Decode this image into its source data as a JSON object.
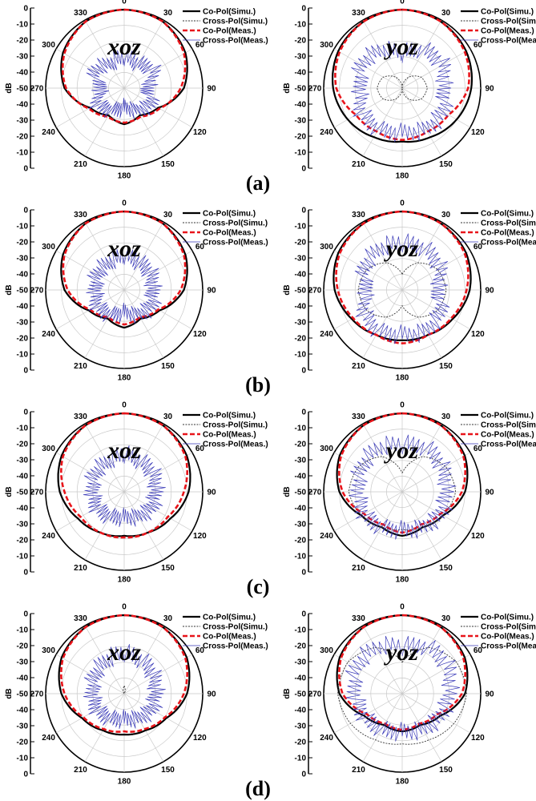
{
  "figure": {
    "panel_labels": [
      "(a)",
      "(b)",
      "(c)",
      "(d)"
    ],
    "legend": [
      "Co-Pol(Simu.)",
      "Cross-Pol(Simu.)",
      "Co-Pol(Meas.)",
      "Cross-Pol(Meas.)"
    ],
    "series_colors": {
      "co_simu": "#000000",
      "cross_simu": "#333333",
      "co_meas": "#e8141a",
      "cross_meas": "#3a3ab8"
    },
    "radial_label": "dB",
    "radial_ticks": [
      "0",
      "-10",
      "-20",
      "-30",
      "-40",
      "-50",
      "-40",
      "-30",
      "-20",
      "-10",
      "0"
    ],
    "angle_labels": [
      "0",
      "30",
      "60",
      "90",
      "120",
      "150",
      "180",
      "210",
      "240",
      "270",
      "300",
      "330"
    ]
  },
  "chart_data": [
    {
      "type": "polar",
      "panel": "(a)",
      "plane": "xoz",
      "r_range": [
        -50,
        0
      ],
      "angle_step": 30,
      "grid": true,
      "legend_position": "top-right",
      "theta_deg": [
        0,
        30,
        60,
        90,
        120,
        150,
        180,
        210,
        240,
        270,
        300,
        330
      ],
      "series": [
        {
          "name": "Co-Pol(Simu.)",
          "r_db": [
            0,
            -1,
            -5,
            -12,
            -25,
            -30,
            -27,
            -30,
            -25,
            -12,
            -5,
            -1
          ]
        },
        {
          "name": "Cross-Pol(Simu.)",
          "r_db": [
            -50,
            -50,
            -50,
            -50,
            -50,
            -50,
            -50,
            -50,
            -50,
            -50,
            -50,
            -50
          ]
        },
        {
          "name": "Co-Pol(Meas.)",
          "r_db": [
            0,
            -1,
            -6,
            -14,
            -24,
            -29,
            -28,
            -29,
            -24,
            -13,
            -6,
            -1
          ]
        },
        {
          "name": "Cross-Pol(Meas.)",
          "r_db": [
            -30,
            -32,
            -28,
            -36,
            -30,
            -34,
            -38,
            -34,
            -30,
            -36,
            -28,
            -32
          ]
        }
      ]
    },
    {
      "type": "polar",
      "panel": "(a)",
      "plane": "yoz",
      "r_range": [
        -50,
        0
      ],
      "angle_step": 30,
      "grid": true,
      "legend_position": "top-right",
      "theta_deg": [
        0,
        30,
        60,
        90,
        120,
        150,
        180,
        210,
        240,
        270,
        300,
        330
      ],
      "series": [
        {
          "name": "Co-Pol(Simu.)",
          "r_db": [
            0,
            -1,
            -3,
            -6,
            -10,
            -14,
            -16,
            -14,
            -10,
            -6,
            -3,
            -1
          ]
        },
        {
          "name": "Cross-Pol(Simu.)",
          "r_db": [
            -50,
            -42,
            -36,
            -34,
            -36,
            -42,
            -50,
            -42,
            -36,
            -34,
            -36,
            -42
          ]
        },
        {
          "name": "Co-Pol(Meas.)",
          "r_db": [
            0,
            -1,
            -4,
            -8,
            -16,
            -18,
            -17,
            -18,
            -16,
            -8,
            -4,
            -1
          ]
        },
        {
          "name": "Cross-Pol(Meas.)",
          "r_db": [
            -28,
            -22,
            -20,
            -24,
            -20,
            -20,
            -22,
            -20,
            -20,
            -24,
            -20,
            -22
          ]
        }
      ]
    },
    {
      "type": "polar",
      "panel": "(b)",
      "plane": "xoz",
      "r_range": [
        -50,
        0
      ],
      "angle_step": 30,
      "grid": true,
      "legend_position": "top-right",
      "theta_deg": [
        0,
        30,
        60,
        90,
        120,
        150,
        180,
        210,
        240,
        270,
        300,
        330
      ],
      "series": [
        {
          "name": "Co-Pol(Simu.)",
          "r_db": [
            0,
            -1,
            -5,
            -12,
            -24,
            -29,
            -26,
            -29,
            -24,
            -12,
            -5,
            -1
          ]
        },
        {
          "name": "Cross-Pol(Simu.)",
          "r_db": [
            -50,
            -50,
            -50,
            -50,
            -50,
            -50,
            -50,
            -50,
            -50,
            -50,
            -50,
            -50
          ]
        },
        {
          "name": "Co-Pol(Meas.)",
          "r_db": [
            0,
            -1,
            -6,
            -14,
            -25,
            -30,
            -28,
            -30,
            -25,
            -14,
            -6,
            -1
          ]
        },
        {
          "name": "Cross-Pol(Meas.)",
          "r_db": [
            -28,
            -30,
            -30,
            -32,
            -30,
            -32,
            -36,
            -32,
            -30,
            -32,
            -30,
            -30
          ]
        }
      ]
    },
    {
      "type": "polar",
      "panel": "(b)",
      "plane": "yoz",
      "r_range": [
        -50,
        0
      ],
      "angle_step": 30,
      "grid": true,
      "legend_position": "top-right",
      "theta_deg": [
        0,
        30,
        60,
        90,
        120,
        150,
        180,
        210,
        240,
        270,
        300,
        330
      ],
      "series": [
        {
          "name": "Co-Pol(Simu.)",
          "r_db": [
            0,
            -1,
            -3,
            -7,
            -13,
            -17,
            -18,
            -17,
            -13,
            -7,
            -3,
            -1
          ]
        },
        {
          "name": "Cross-Pol(Simu.)",
          "r_db": [
            -40,
            -30,
            -24,
            -22,
            -24,
            -30,
            -40,
            -30,
            -24,
            -22,
            -24,
            -30
          ]
        },
        {
          "name": "Co-Pol(Meas.)",
          "r_db": [
            0,
            -1,
            -4,
            -9,
            -14,
            -17,
            -16,
            -17,
            -14,
            -9,
            -4,
            -1
          ]
        },
        {
          "name": "Cross-Pol(Meas.)",
          "r_db": [
            -20,
            -20,
            -22,
            -28,
            -22,
            -20,
            -22,
            -20,
            -22,
            -28,
            -22,
            -20
          ]
        }
      ]
    },
    {
      "type": "polar",
      "panel": "(c)",
      "plane": "xoz",
      "r_range": [
        -50,
        0
      ],
      "angle_step": 30,
      "grid": true,
      "legend_position": "top-right",
      "theta_deg": [
        0,
        30,
        60,
        90,
        120,
        150,
        180,
        210,
        240,
        270,
        300,
        330
      ],
      "series": [
        {
          "name": "Co-Pol(Simu.)",
          "r_db": [
            0,
            -1,
            -4,
            -9,
            -16,
            -20,
            -22,
            -20,
            -16,
            -9,
            -4,
            -1
          ]
        },
        {
          "name": "Cross-Pol(Simu.)",
          "r_db": [
            -50,
            -50,
            -50,
            -50,
            -50,
            -50,
            -50,
            -50,
            -50,
            -50,
            -50,
            -50
          ]
        },
        {
          "name": "Co-Pol(Meas.)",
          "r_db": [
            0,
            -1,
            -5,
            -12,
            -18,
            -20,
            -21,
            -20,
            -18,
            -12,
            -5,
            -1
          ]
        },
        {
          "name": "Cross-Pol(Meas.)",
          "r_db": [
            -26,
            -28,
            -28,
            -30,
            -30,
            -32,
            -34,
            -32,
            -30,
            -30,
            -28,
            -28
          ]
        }
      ]
    },
    {
      "type": "polar",
      "panel": "(c)",
      "plane": "yoz",
      "r_range": [
        -50,
        0
      ],
      "angle_step": 30,
      "grid": true,
      "legend_position": "top-right",
      "theta_deg": [
        0,
        30,
        60,
        90,
        120,
        150,
        180,
        210,
        240,
        270,
        300,
        330
      ],
      "series": [
        {
          "name": "Co-Pol(Simu.)",
          "r_db": [
            0,
            -1,
            -4,
            -10,
            -20,
            -24,
            -22,
            -24,
            -20,
            -10,
            -4,
            -1
          ]
        },
        {
          "name": "Cross-Pol(Simu.)",
          "r_db": [
            -38,
            -24,
            -18,
            -16,
            -20,
            -24,
            -26,
            -24,
            -20,
            -16,
            -18,
            -24
          ]
        },
        {
          "name": "Co-Pol(Meas.)",
          "r_db": [
            0,
            -1,
            -5,
            -12,
            -22,
            -26,
            -24,
            -26,
            -22,
            -12,
            -5,
            -1
          ]
        },
        {
          "name": "Cross-Pol(Meas.)",
          "r_db": [
            -20,
            -18,
            -20,
            -22,
            -22,
            -24,
            -26,
            -24,
            -22,
            -22,
            -20,
            -18
          ]
        }
      ]
    },
    {
      "type": "polar",
      "panel": "(d)",
      "plane": "xoz",
      "r_range": [
        -50,
        0
      ],
      "angle_step": 30,
      "grid": true,
      "legend_position": "top-right",
      "theta_deg": [
        0,
        30,
        60,
        90,
        120,
        150,
        180,
        210,
        240,
        270,
        300,
        330
      ],
      "series": [
        {
          "name": "Co-Pol(Simu.)",
          "r_db": [
            0,
            -1,
            -4,
            -10,
            -19,
            -23,
            -24,
            -23,
            -19,
            -10,
            -4,
            -1
          ]
        },
        {
          "name": "Cross-Pol(Simu.)",
          "r_db": [
            -45,
            -50,
            -50,
            -50,
            -50,
            -50,
            -50,
            -50,
            -50,
            -50,
            -50,
            -50
          ]
        },
        {
          "name": "Co-Pol(Meas.)",
          "r_db": [
            0,
            -1,
            -5,
            -12,
            -20,
            -24,
            -26,
            -24,
            -20,
            -12,
            -5,
            -1
          ]
        },
        {
          "name": "Cross-Pol(Meas.)",
          "r_db": [
            -24,
            -26,
            -28,
            -30,
            -30,
            -32,
            -34,
            -32,
            -30,
            -30,
            -28,
            -26
          ]
        }
      ]
    },
    {
      "type": "polar",
      "panel": "(d)",
      "plane": "yoz",
      "r_range": [
        -50,
        0
      ],
      "angle_step": 30,
      "grid": true,
      "legend_position": "top-right",
      "theta_deg": [
        0,
        30,
        60,
        90,
        120,
        150,
        180,
        210,
        240,
        270,
        300,
        330
      ],
      "series": [
        {
          "name": "Co-Pol(Simu.)",
          "r_db": [
            0,
            -1,
            -4,
            -10,
            -22,
            -27,
            -26,
            -27,
            -22,
            -10,
            -4,
            -1
          ]
        },
        {
          "name": "Cross-Pol(Simu.)",
          "r_db": [
            -30,
            -16,
            -10,
            -9,
            -12,
            -16,
            -18,
            -16,
            -12,
            -9,
            -10,
            -16
          ]
        },
        {
          "name": "Co-Pol(Meas.)",
          "r_db": [
            0,
            -1,
            -5,
            -12,
            -24,
            -28,
            -27,
            -28,
            -24,
            -12,
            -5,
            -1
          ]
        },
        {
          "name": "Cross-Pol(Meas.)",
          "r_db": [
            -20,
            -16,
            -16,
            -20,
            -22,
            -24,
            -26,
            -24,
            -22,
            -20,
            -16,
            -16
          ]
        }
      ]
    }
  ]
}
